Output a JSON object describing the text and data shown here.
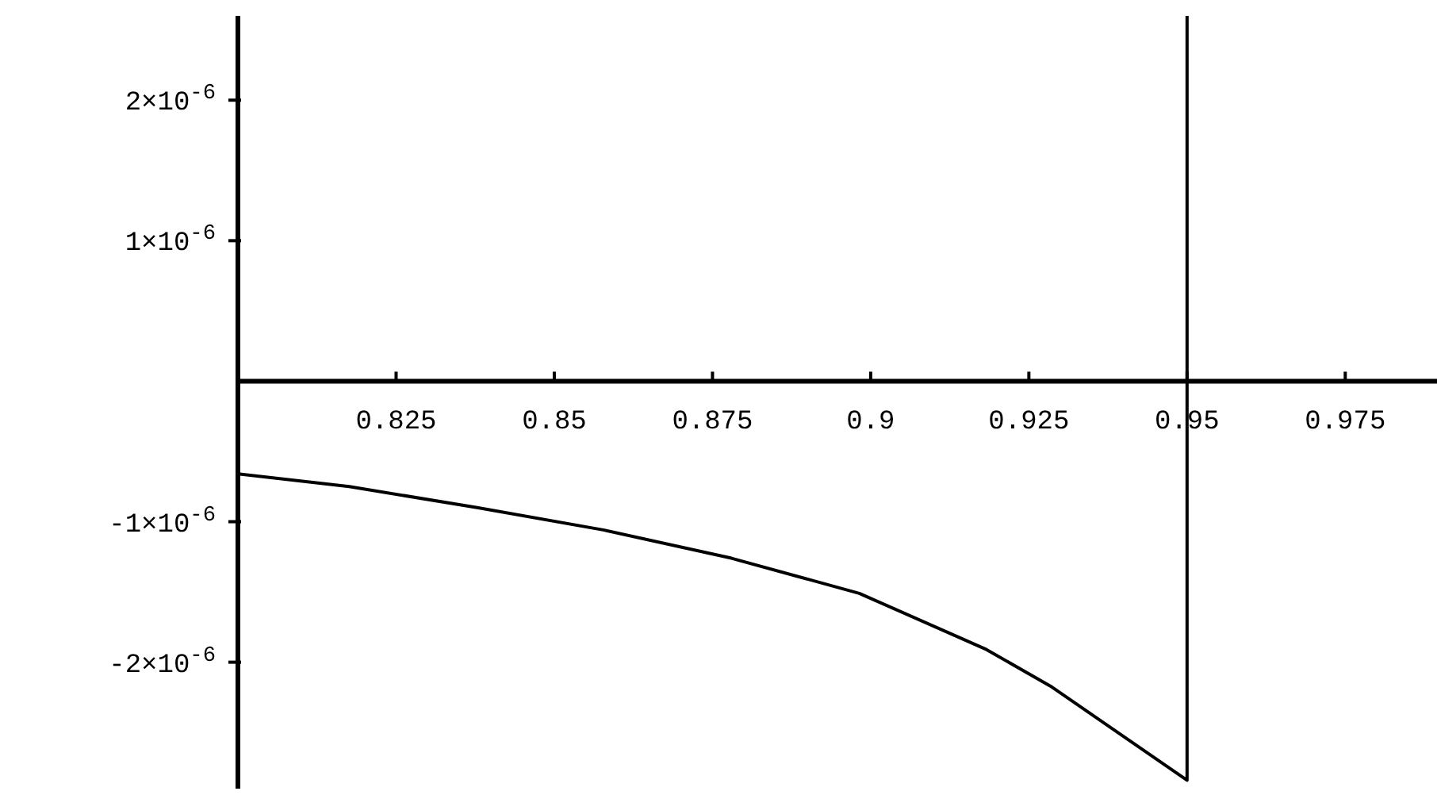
{
  "chart_data": {
    "type": "line",
    "x": [
      0.8,
      0.8176,
      0.8378,
      0.8579,
      0.878,
      0.8982,
      0.9183,
      0.9284,
      0.9384,
      0.95,
      0.95
    ],
    "values": [
      -6.6e-07,
      -7.5e-07,
      -9e-07,
      -1.06e-06,
      -1.26e-06,
      -1.51e-06,
      -1.91e-06,
      -2.17e-06,
      -2.48e-06,
      -2.84e-06,
      2.6e-06
    ],
    "color": "#000000",
    "xlim": [
      0.8,
      0.99
    ],
    "xticks": [
      0.825,
      0.85,
      0.875,
      0.9,
      0.925,
      0.95,
      0.975
    ],
    "ylim": [
      -2.9e-06,
      2.6e-06
    ],
    "yticks": [
      {
        "value": -2e-06,
        "label": "-2×10$^{-6}$"
      },
      {
        "value": -1e-06,
        "label": "-1×10$^{-6}$"
      },
      {
        "value": 1e-06,
        "label": "1×10$^{-6}$"
      },
      {
        "value": 2e-06,
        "label": "2×10$^{-6}$"
      }
    ]
  }
}
